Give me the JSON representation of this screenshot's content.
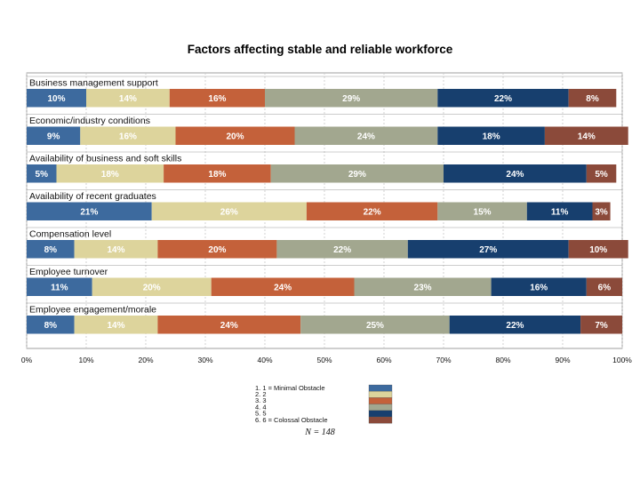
{
  "chart_data": {
    "type": "bar",
    "orientation": "horizontal",
    "stacked": true,
    "title": "Factors affecting stable and reliable workforce",
    "categories": [
      "Business management support",
      "Economic/industry conditions",
      "Availability of business and soft skills",
      "Availability of recent graduates",
      "Compensation level",
      "Employee turnover",
      "Employee engagement/morale"
    ],
    "series": [
      {
        "name": "1. 1 = Minimal Obstacle",
        "color": "#3d6a9e",
        "values": [
          10,
          9,
          5,
          21,
          8,
          11,
          8
        ]
      },
      {
        "name": "2. 2",
        "color": "#ddd49c",
        "values": [
          14,
          16,
          18,
          26,
          14,
          20,
          14
        ]
      },
      {
        "name": "3. 3",
        "color": "#c4613a",
        "values": [
          16,
          20,
          18,
          22,
          20,
          24,
          24
        ]
      },
      {
        "name": "4. 4",
        "color": "#a2a78f",
        "values": [
          29,
          24,
          29,
          15,
          22,
          23,
          25
        ]
      },
      {
        "name": "5. 5",
        "color": "#173f6e",
        "values": [
          22,
          18,
          24,
          11,
          27,
          16,
          22
        ]
      },
      {
        "name": "6. 6 = Colossal Obstacle",
        "color": "#8b4a3a",
        "values": [
          8,
          14,
          5,
          3,
          10,
          6,
          7
        ]
      }
    ],
    "x_ticks": [
      "0%",
      "10%",
      "20%",
      "30%",
      "40%",
      "50%",
      "60%",
      "70%",
      "80%",
      "90%",
      "100%"
    ],
    "xlim": [
      0,
      100
    ],
    "value_suffix": "%",
    "grid": true,
    "legend_position": "bottom-center",
    "note": "N = 148"
  }
}
